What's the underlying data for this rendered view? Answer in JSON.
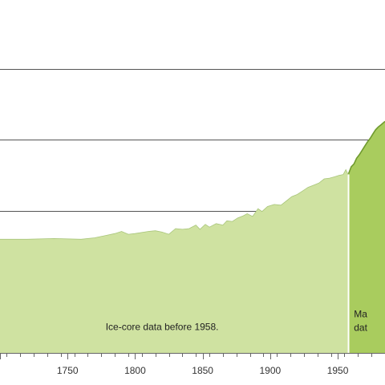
{
  "chart_data": {
    "type": "area",
    "xlim": [
      1700,
      1985
    ],
    "ylim": [
      0,
      420
    ],
    "grid": {
      "horizontal": true,
      "values": [
        200,
        300,
        400
      ]
    },
    "x_ticks": [
      1750,
      1800,
      1850,
      1900,
      1950
    ],
    "series": [
      {
        "points": [
          [
            1700,
            160
          ],
          [
            1720,
            160
          ],
          [
            1740,
            161
          ],
          [
            1760,
            160
          ],
          [
            1770,
            162
          ],
          [
            1780,
            166
          ],
          [
            1785,
            168
          ],
          [
            1790,
            171
          ],
          [
            1795,
            167
          ],
          [
            1800,
            168
          ],
          [
            1810,
            171
          ],
          [
            1815,
            172
          ],
          [
            1820,
            170
          ],
          [
            1825,
            167
          ],
          [
            1830,
            175
          ],
          [
            1835,
            174
          ],
          [
            1840,
            175
          ],
          [
            1845,
            180
          ],
          [
            1848,
            174
          ],
          [
            1852,
            181
          ],
          [
            1855,
            177
          ],
          [
            1860,
            182
          ],
          [
            1865,
            180
          ],
          [
            1868,
            186
          ],
          [
            1872,
            185
          ],
          [
            1876,
            190
          ],
          [
            1880,
            193
          ],
          [
            1883,
            196
          ],
          [
            1887,
            192
          ],
          [
            1891,
            203
          ],
          [
            1894,
            199
          ],
          [
            1898,
            206
          ],
          [
            1903,
            209
          ],
          [
            1908,
            208
          ],
          [
            1912,
            214
          ],
          [
            1916,
            220
          ],
          [
            1920,
            223
          ],
          [
            1924,
            228
          ],
          [
            1928,
            233
          ],
          [
            1932,
            236
          ],
          [
            1936,
            239
          ],
          [
            1940,
            245
          ],
          [
            1944,
            246
          ],
          [
            1948,
            248
          ],
          [
            1951,
            250
          ],
          [
            1954,
            251
          ],
          [
            1956,
            258
          ],
          [
            1958,
            250
          ]
        ],
        "color": "#cfe2a1"
      },
      {
        "points": [
          [
            1958,
            252
          ],
          [
            1960,
            262
          ],
          [
            1962,
            266
          ],
          [
            1964,
            274
          ],
          [
            1966,
            279
          ],
          [
            1968,
            285
          ],
          [
            1970,
            291
          ],
          [
            1972,
            297
          ],
          [
            1974,
            302
          ],
          [
            1976,
            308
          ],
          [
            1978,
            314
          ],
          [
            1980,
            318
          ],
          [
            1982,
            321
          ],
          [
            1985,
            326
          ]
        ],
        "color": "#a9cc5e",
        "line_color": "#6f9a2e"
      }
    ],
    "annotations": [
      {
        "text": "Ice-core data before 1958.",
        "x": 1820,
        "y": 32
      },
      {
        "text": "Ma",
        "x": 1962,
        "y": 50
      },
      {
        "text": "dat",
        "x": 1962,
        "y": 31
      }
    ],
    "colors": {
      "grid": "#555555",
      "axis": "#666666",
      "divider": "#ffffff"
    }
  }
}
